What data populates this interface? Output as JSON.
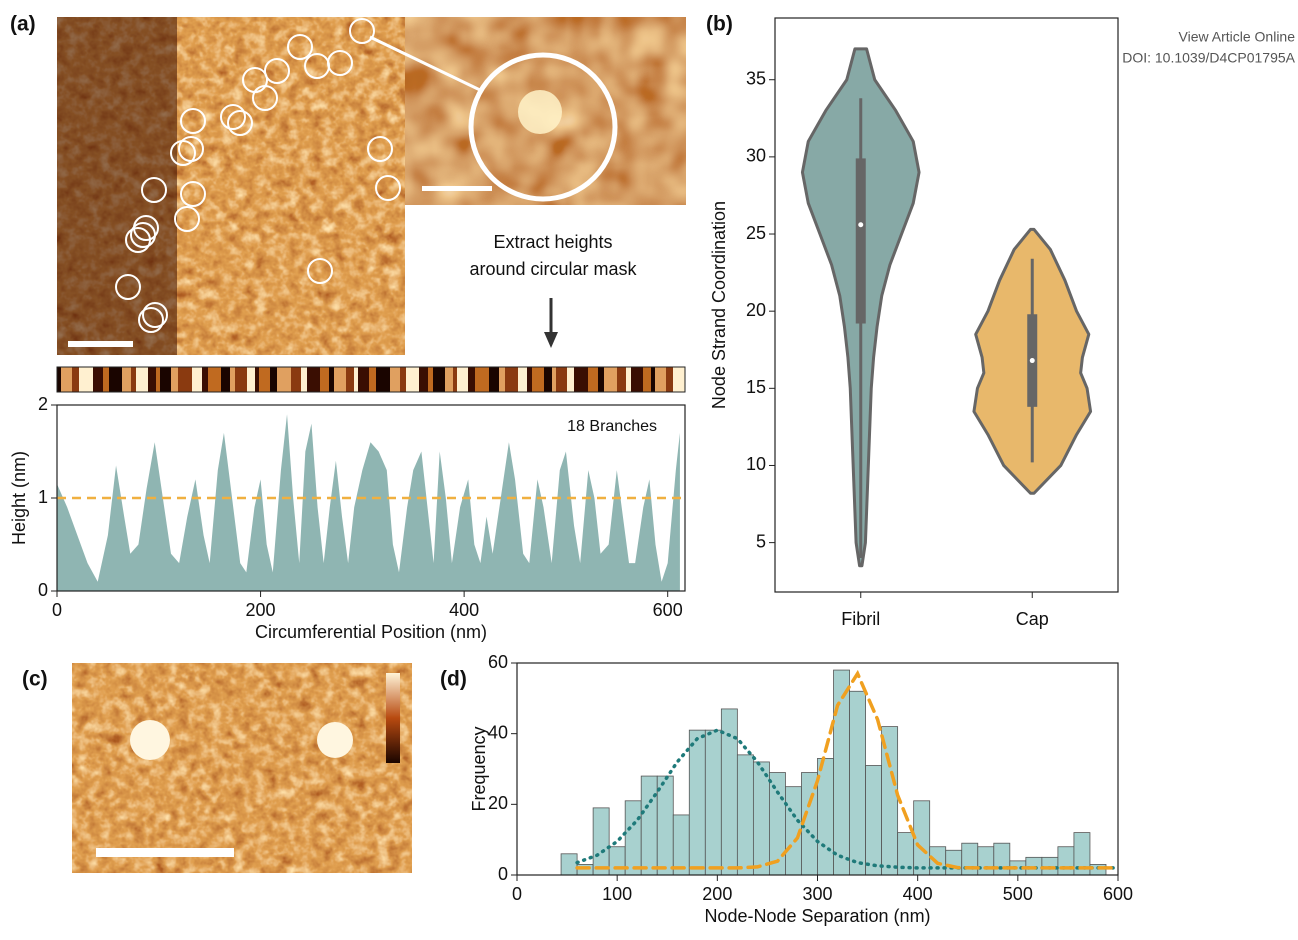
{
  "header": {
    "link": "View Article Online",
    "doi": "DOI: 10.1039/D4CP01795A"
  },
  "panels": [
    "(a)",
    "(b)",
    "(c)",
    "(d)"
  ],
  "extract_note": [
    "Extract heights",
    "around circular mask"
  ],
  "chart_data": [
    {
      "type": "area",
      "xlabel": "Circumferential Position (nm)",
      "ylabel": "Height (nm)",
      "annotation": "18 Branches",
      "color": "#8fb5b2",
      "threshold": 1,
      "threshold_color": "#f0b040",
      "xlim": [
        0,
        617
      ],
      "ylim": [
        0,
        2
      ],
      "xticks": [
        0,
        200,
        400,
        600
      ],
      "yticks": [
        0,
        1,
        2
      ],
      "x": [
        0,
        10,
        20,
        30,
        40,
        50,
        58,
        66,
        72,
        80,
        88,
        96,
        104,
        112,
        120,
        128,
        136,
        144,
        150,
        158,
        164,
        172,
        180,
        186,
        194,
        200,
        206,
        212,
        220,
        226,
        232,
        238,
        244,
        250,
        256,
        262,
        268,
        274,
        280,
        286,
        292,
        300,
        308,
        316,
        324,
        330,
        336,
        344,
        350,
        358,
        364,
        370,
        376,
        382,
        388,
        396,
        404,
        410,
        416,
        422,
        428,
        436,
        444,
        450,
        458,
        464,
        472,
        478,
        486,
        494,
        500,
        508,
        514,
        522,
        528,
        534,
        542,
        550,
        556,
        562,
        568,
        576,
        582,
        588,
        594,
        600,
        608,
        612
      ],
      "values": [
        1.15,
        0.9,
        0.6,
        0.3,
        0.1,
        0.6,
        1.35,
        0.8,
        0.4,
        0.5,
        1.1,
        1.6,
        1.0,
        0.4,
        0.3,
        0.8,
        1.2,
        0.6,
        0.3,
        1.3,
        1.7,
        1.0,
        0.3,
        0.2,
        0.9,
        1.2,
        0.5,
        0.2,
        1.3,
        1.9,
        1.0,
        0.3,
        1.5,
        1.8,
        0.9,
        0.3,
        0.9,
        1.4,
        0.8,
        0.3,
        0.9,
        1.3,
        1.6,
        1.5,
        1.3,
        0.5,
        0.2,
        0.9,
        1.3,
        1.5,
        0.9,
        0.3,
        1.5,
        1.0,
        0.3,
        0.9,
        1.2,
        0.5,
        0.3,
        0.8,
        0.4,
        1.0,
        1.6,
        1.2,
        0.4,
        0.3,
        1.2,
        0.9,
        0.3,
        1.3,
        1.5,
        0.7,
        0.3,
        1.3,
        1.0,
        0.4,
        0.5,
        1.3,
        0.8,
        0.3,
        0.3,
        0.9,
        1.2,
        0.5,
        0.1,
        0.3,
        1.3,
        1.7
      ]
    },
    {
      "type": "violin",
      "ylabel": "Node Strand Coordination",
      "ylim": [
        1.8,
        39
      ],
      "yticks": [
        5,
        10,
        15,
        20,
        25,
        30,
        35
      ],
      "series": [
        {
          "name": "Fibril",
          "color": "#87a9a6",
          "levels": [
            3.5,
            5,
            7,
            9,
            11,
            13,
            15,
            17,
            19,
            21,
            23,
            25,
            27,
            29,
            31,
            33,
            35,
            37
          ],
          "density": [
            0.02,
            0.08,
            0.1,
            0.12,
            0.14,
            0.16,
            0.18,
            0.22,
            0.28,
            0.36,
            0.5,
            0.7,
            0.9,
            1.0,
            0.9,
            0.6,
            0.24,
            0.1
          ],
          "whiskers": [
            4,
            33.8
          ],
          "quartiles": [
            19.2,
            29.9
          ],
          "median": 25.6
        },
        {
          "name": "Cap",
          "color": "#e8b86b",
          "levels": [
            8.2,
            10,
            12,
            13.5,
            15,
            16,
            17,
            18.5,
            20,
            22,
            24,
            25.3
          ],
          "density": [
            0.03,
            0.49,
            0.76,
            1.0,
            0.94,
            0.83,
            0.86,
            0.97,
            0.76,
            0.56,
            0.31,
            0.03
          ],
          "whiskers": [
            10.2,
            23.4
          ],
          "quartiles": [
            13.8,
            19.8
          ],
          "median": 16.8
        }
      ]
    },
    {
      "type": "histogram",
      "xlabel": "Node-Node Separation (nm)",
      "ylabel": "Frequency",
      "color": "#a8d1cf",
      "xlim": [
        0,
        600
      ],
      "ylim": [
        0,
        60
      ],
      "xticks": [
        0,
        100,
        200,
        300,
        400,
        500,
        600
      ],
      "yticks": [
        0,
        20,
        40,
        60
      ],
      "bins": [
        44,
        60,
        76,
        92,
        108,
        124,
        140,
        156,
        172,
        188,
        204,
        220,
        236,
        252,
        268,
        284,
        300,
        316,
        332,
        348,
        364,
        380,
        396,
        412,
        428,
        444,
        460,
        476,
        492,
        508,
        524,
        540,
        556,
        572,
        588
      ],
      "counts": [
        6,
        3,
        19,
        8,
        21,
        28,
        28,
        17,
        41,
        41,
        47,
        34,
        32,
        29,
        25,
        29,
        33,
        58,
        52,
        31,
        42,
        12,
        21,
        8,
        7,
        9,
        8,
        9,
        4,
        5,
        5,
        8,
        12,
        3
      ],
      "fits": [
        {
          "color": "#1f7a7a",
          "style": "dotted",
          "x": [
            60,
            80,
            100,
            120,
            140,
            160,
            180,
            200,
            220,
            240,
            260,
            280,
            300,
            320,
            340,
            360,
            380,
            400,
            420,
            440,
            460,
            480,
            500,
            520,
            540,
            560,
            580,
            600
          ],
          "values": [
            3.5,
            5.6,
            9.5,
            15.5,
            23.5,
            32,
            38.6,
            41,
            38.6,
            32,
            23.5,
            15.5,
            9.5,
            5.6,
            3.5,
            2.6,
            2.2,
            2,
            2,
            2,
            2,
            2,
            2,
            2,
            2,
            2,
            2,
            2
          ]
        },
        {
          "color": "#f0a020",
          "style": "dashed",
          "x": [
            60,
            80,
            100,
            120,
            140,
            160,
            180,
            200,
            220,
            240,
            260,
            280,
            300,
            320,
            340,
            360,
            380,
            400,
            420,
            440,
            460,
            480,
            500,
            520,
            540,
            560,
            580,
            600
          ],
          "values": [
            2,
            2,
            2,
            2,
            2,
            2,
            2,
            2,
            2,
            2.3,
            3.9,
            10.5,
            26.7,
            48,
            57,
            44,
            22.6,
            8.5,
            3.3,
            2.1,
            2,
            2,
            2,
            2,
            2,
            2,
            2,
            2
          ]
        }
      ]
    }
  ]
}
